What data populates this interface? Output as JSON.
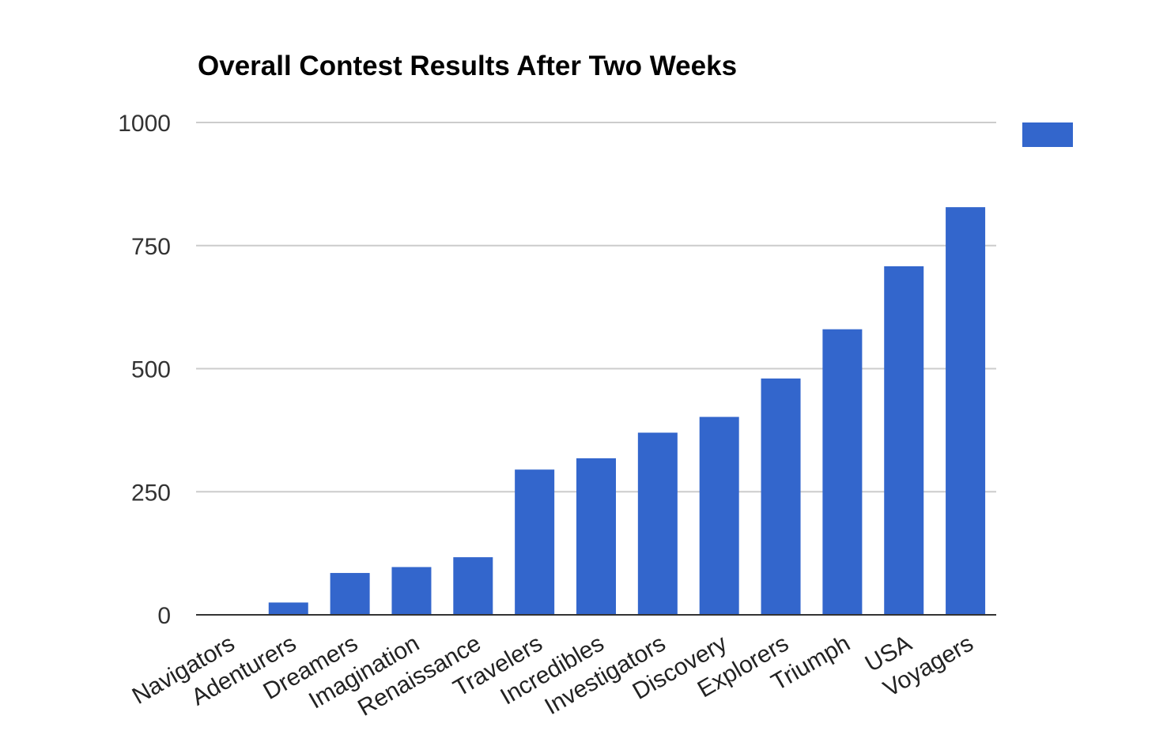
{
  "chart_data": {
    "type": "bar",
    "title": "Overall Contest Results After Two Weeks",
    "xlabel": "",
    "ylabel": "",
    "categories": [
      "Navigators",
      "Adenturers",
      "Dreamers",
      "Imagination",
      "Renaissance",
      "Travelers",
      "Incredibles",
      "Investigators",
      "Discovery",
      "Explorers",
      "Triumph",
      "USA",
      "Voyagers"
    ],
    "series": [
      {
        "values": [
          0,
          25,
          85,
          97,
          117,
          295,
          318,
          370,
          402,
          480,
          580,
          708,
          828
        ]
      }
    ],
    "ylim": [
      0,
      1000
    ],
    "yticks": [
      0,
      250,
      500,
      750,
      1000
    ],
    "grid": true,
    "legend": "right",
    "bar_color": "#3366cc",
    "grid_color": "#cccccc",
    "axis_color": "#333333"
  }
}
